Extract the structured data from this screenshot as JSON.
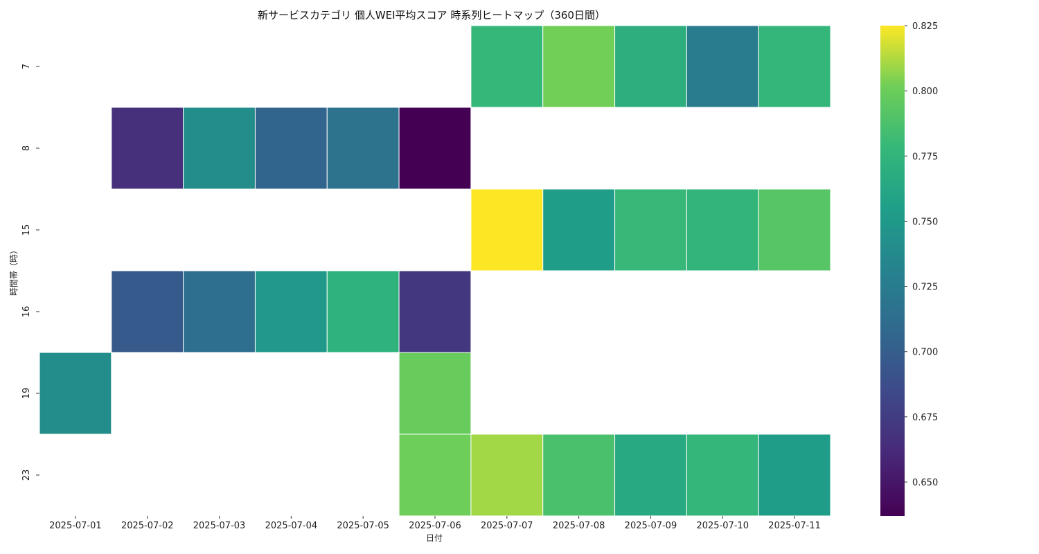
{
  "chart_data": {
    "type": "heatmap",
    "title": "新サービスカテゴリ 個人WEI平均スコア 時系列ヒートマップ（360日間）",
    "xlabel": "日付",
    "ylabel": "時間帯（時）",
    "x_categories": [
      "2025-07-01",
      "2025-07-02",
      "2025-07-03",
      "2025-07-04",
      "2025-07-05",
      "2025-07-06",
      "2025-07-07",
      "2025-07-08",
      "2025-07-09",
      "2025-07-10",
      "2025-07-11"
    ],
    "y_categories": [
      "7",
      "8",
      "15",
      "16",
      "19",
      "23"
    ],
    "values": [
      [
        null,
        null,
        null,
        null,
        null,
        null,
        0.778,
        0.802,
        0.77,
        0.725,
        0.777
      ],
      [
        null,
        0.666,
        0.74,
        0.705,
        0.717,
        0.637,
        null,
        null,
        null,
        null,
        null
      ],
      [
        null,
        null,
        null,
        null,
        null,
        null,
        0.825,
        0.754,
        0.779,
        0.775,
        0.792
      ],
      [
        null,
        0.697,
        0.713,
        0.75,
        0.773,
        0.672,
        null,
        null,
        null,
        null,
        null
      ],
      [
        0.74,
        null,
        null,
        null,
        null,
        0.799,
        null,
        null,
        null,
        null,
        null
      ],
      [
        null,
        null,
        null,
        null,
        null,
        0.801,
        0.81,
        0.787,
        0.765,
        0.777,
        0.754
      ]
    ],
    "colormap": "viridis",
    "colorbar": {
      "range": [
        0.637,
        0.825
      ],
      "ticks": [
        "0.650",
        "0.675",
        "0.700",
        "0.725",
        "0.750",
        "0.775",
        "0.800",
        "0.825"
      ]
    },
    "grid": false,
    "legend": "colorbar-right"
  }
}
